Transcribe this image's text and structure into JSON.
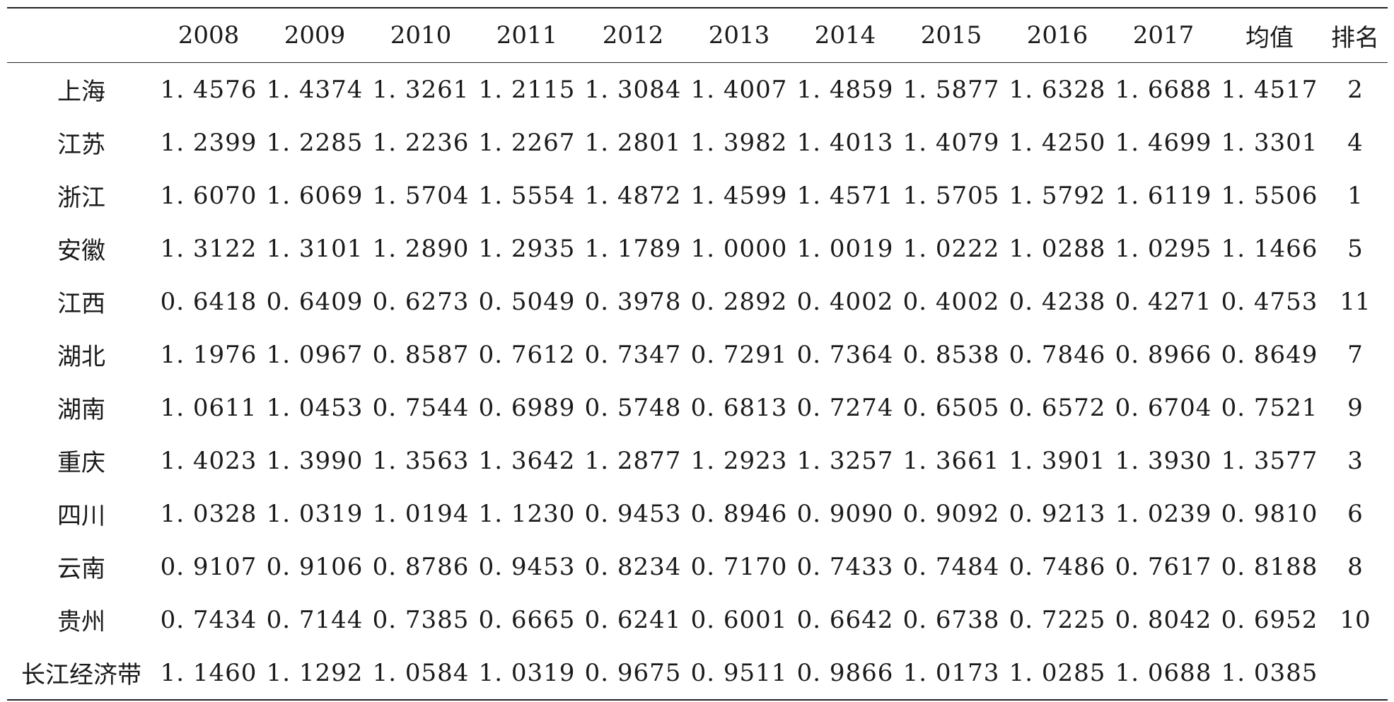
{
  "table": {
    "headers": [
      "",
      "2008",
      "2009",
      "2010",
      "2011",
      "2012",
      "2013",
      "2014",
      "2015",
      "2016",
      "2017",
      "均值",
      "排名"
    ],
    "rows": [
      {
        "region": "上海",
        "values": [
          "1. 4576",
          "1. 4374",
          "1. 3261",
          "1. 2115",
          "1. 3084",
          "1. 4007",
          "1. 4859",
          "1. 5877",
          "1. 6328",
          "1. 6688",
          "1. 4517"
        ],
        "rank": "2"
      },
      {
        "region": "江苏",
        "values": [
          "1. 2399",
          "1. 2285",
          "1. 2236",
          "1. 2267",
          "1. 2801",
          "1. 3982",
          "1. 4013",
          "1. 4079",
          "1. 4250",
          "1. 4699",
          "1. 3301"
        ],
        "rank": "4"
      },
      {
        "region": "浙江",
        "values": [
          "1. 6070",
          "1. 6069",
          "1. 5704",
          "1. 5554",
          "1. 4872",
          "1. 4599",
          "1. 4571",
          "1. 5705",
          "1. 5792",
          "1. 6119",
          "1. 5506"
        ],
        "rank": "1"
      },
      {
        "region": "安徽",
        "values": [
          "1. 3122",
          "1. 3101",
          "1. 2890",
          "1. 2935",
          "1. 1789",
          "1. 0000",
          "1. 0019",
          "1. 0222",
          "1. 0288",
          "1. 0295",
          "1. 1466"
        ],
        "rank": "5"
      },
      {
        "region": "江西",
        "values": [
          "0. 6418",
          "0. 6409",
          "0. 6273",
          "0. 5049",
          "0. 3978",
          "0. 2892",
          "0. 4002",
          "0. 4002",
          "0. 4238",
          "0. 4271",
          "0. 4753"
        ],
        "rank": "11"
      },
      {
        "region": "湖北",
        "values": [
          "1. 1976",
          "1. 0967",
          "0. 8587",
          "0. 7612",
          "0. 7347",
          "0. 7291",
          "0. 7364",
          "0. 8538",
          "0. 7846",
          "0. 8966",
          "0. 8649"
        ],
        "rank": "7"
      },
      {
        "region": "湖南",
        "values": [
          "1. 0611",
          "1. 0453",
          "0. 7544",
          "0. 6989",
          "0. 5748",
          "0. 6813",
          "0. 7274",
          "0. 6505",
          "0. 6572",
          "0. 6704",
          "0. 7521"
        ],
        "rank": "9"
      },
      {
        "region": "重庆",
        "values": [
          "1. 4023",
          "1. 3990",
          "1. 3563",
          "1. 3642",
          "1. 2877",
          "1. 2923",
          "1. 3257",
          "1. 3661",
          "1. 3901",
          "1. 3930",
          "1. 3577"
        ],
        "rank": "3"
      },
      {
        "region": "四川",
        "values": [
          "1. 0328",
          "1. 0319",
          "1. 0194",
          "1. 1230",
          "0. 9453",
          "0. 8946",
          "0. 9090",
          "0. 9092",
          "0. 9213",
          "1. 0239",
          "0. 9810"
        ],
        "rank": "6"
      },
      {
        "region": "云南",
        "values": [
          "0. 9107",
          "0. 9106",
          "0. 8786",
          "0. 9453",
          "0. 8234",
          "0. 7170",
          "0. 7433",
          "0. 7484",
          "0. 7486",
          "0. 7617",
          "0. 8188"
        ],
        "rank": "8"
      },
      {
        "region": "贵州",
        "values": [
          "0. 7434",
          "0. 7144",
          "0. 7385",
          "0. 6665",
          "0. 6241",
          "0. 6001",
          "0. 6642",
          "0. 6738",
          "0. 7225",
          "0. 8042",
          "0. 6952"
        ],
        "rank": "10"
      },
      {
        "region": "长江经济带",
        "values": [
          "1. 1460",
          "1. 1292",
          "1. 0584",
          "1. 0319",
          "0. 9675",
          "0. 9511",
          "0. 9866",
          "1. 0173",
          "1. 0285",
          "1. 0688",
          "1. 0385"
        ],
        "rank": ""
      }
    ]
  }
}
